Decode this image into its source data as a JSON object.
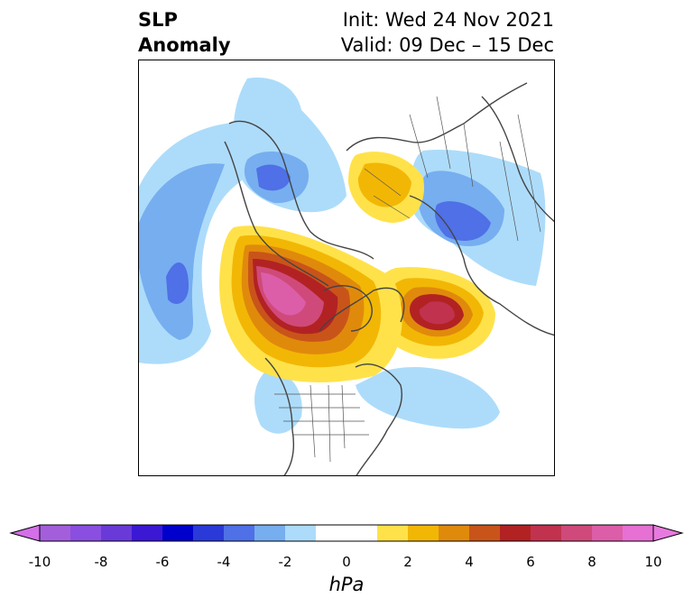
{
  "title": {
    "left_line1": "SLP",
    "left_line2": "Anomaly",
    "right_line1": "Init: Wed 24 Nov 2021",
    "right_line2": "Valid: 09 Dec – 15 Dec"
  },
  "colorbar": {
    "unit": "hPa",
    "ticks": [
      "-10",
      "-8",
      "-6",
      "-4",
      "-2",
      "0",
      "2",
      "4",
      "6",
      "8",
      "10"
    ],
    "bins": [
      {
        "range": "-10 to -9",
        "color": "#a35fdb"
      },
      {
        "range": "-9 to -8",
        "color": "#8a4fe0"
      },
      {
        "range": "-8 to -7",
        "color": "#6a3ad9"
      },
      {
        "range": "-7 to -6",
        "color": "#3b18d4"
      },
      {
        "range": "-6 to -5",
        "color": "#0000cc"
      },
      {
        "range": "-5 to -4",
        "color": "#2a3ad8"
      },
      {
        "range": "-4 to -3",
        "color": "#4f70e6"
      },
      {
        "range": "-3 to -2",
        "color": "#76aef0"
      },
      {
        "range": "-2 to -1",
        "color": "#addcfa"
      },
      {
        "range": "-1 to 0",
        "color": "#ffffff"
      },
      {
        "range": "0 to 1",
        "color": "#ffffff"
      },
      {
        "range": "1 to 2",
        "color": "#ffe24a"
      },
      {
        "range": "2 to 3",
        "color": "#f2b705"
      },
      {
        "range": "3 to 4",
        "color": "#e08a0c"
      },
      {
        "range": "4 to 5",
        "color": "#c9541a"
      },
      {
        "range": "5 to 6",
        "color": "#b22222"
      },
      {
        "range": "6 to 7",
        "color": "#c1324f"
      },
      {
        "range": "7 to 8",
        "color": "#cf4a7a"
      },
      {
        "range": "8 to 9",
        "color": "#dc5ea8"
      },
      {
        "range": "9 to 10",
        "color": "#e670d4"
      }
    ],
    "under_color": "#d36fe8",
    "over_color": "#e87adf"
  },
  "map": {
    "projection": "North Polar Stereographic",
    "features": [
      "coastlines",
      "country borders",
      "US state borders"
    ],
    "anomaly_centers": [
      {
        "label": "positive anomaly, western Canada / Alaska",
        "max_hpa": 9
      },
      {
        "label": "positive anomaly, Iceland / Greenland Sea",
        "max_hpa": 6
      },
      {
        "label": "positive anomaly, Scandinavia / Barents",
        "max_hpa": 3
      },
      {
        "label": "negative anomaly, Siberia",
        "min_hpa": -4
      },
      {
        "label": "negative anomaly, European Russia",
        "min_hpa": -4
      },
      {
        "label": "negative anomaly, North Atlantic (west)",
        "min_hpa": -4
      },
      {
        "label": "negative anomaly, western US",
        "min_hpa": -1
      },
      {
        "label": "negative anomaly, eastern US / Atlantic",
        "min_hpa": -1
      }
    ]
  }
}
